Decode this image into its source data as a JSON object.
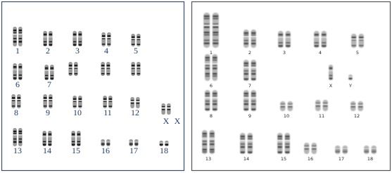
{
  "left_karyotype": {
    "labels": [
      "1",
      "2",
      "3",
      "4",
      "5",
      "6",
      "7",
      "8",
      "9",
      "10",
      "11",
      "12",
      "13",
      "14",
      "15",
      "16",
      "17",
      "18",
      "X",
      "X"
    ]
  },
  "right_karyotype": {
    "labels": [
      "1",
      "2",
      "3",
      "4",
      "5",
      "6",
      "7",
      "X",
      "Y",
      "8",
      "9",
      "10",
      "11",
      "12",
      "13",
      "14",
      "15",
      "16",
      "17",
      "18"
    ]
  }
}
